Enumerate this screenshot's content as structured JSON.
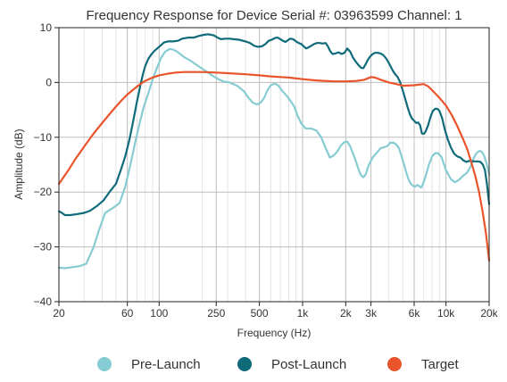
{
  "chart_data": {
    "type": "line",
    "title": "Frequency Response for Device Serial #: 03963599 Channel: 1",
    "xlabel": "Frequency (Hz)",
    "ylabel": "Amplitude (dB)",
    "xscale": "log",
    "xlim": [
      20,
      20000
    ],
    "ylim": [
      -40,
      10
    ],
    "grid": true,
    "legend_position": "bottom",
    "x_ticks": [
      {
        "value": 20,
        "label": "20"
      },
      {
        "value": 60,
        "label": "60"
      },
      {
        "value": 100,
        "label": "100"
      },
      {
        "value": 250,
        "label": "250"
      },
      {
        "value": 500,
        "label": "500"
      },
      {
        "value": 1000,
        "label": "1k"
      },
      {
        "value": 2000,
        "label": "2k"
      },
      {
        "value": 3000,
        "label": "3k"
      },
      {
        "value": 6000,
        "label": "6k"
      },
      {
        "value": 10000,
        "label": "10k"
      },
      {
        "value": 20000,
        "label": "20k"
      }
    ],
    "x_minor_ticks": [
      30,
      40,
      50,
      70,
      80,
      90,
      200,
      300,
      400,
      600,
      700,
      800,
      900,
      4000,
      5000,
      7000,
      8000,
      9000
    ],
    "y_ticks": [
      {
        "value": 10,
        "label": "10"
      },
      {
        "value": 0,
        "label": "0"
      },
      {
        "value": -10,
        "label": "−10"
      },
      {
        "value": -20,
        "label": "−20"
      },
      {
        "value": -30,
        "label": "−30"
      },
      {
        "value": -40,
        "label": "−40"
      }
    ],
    "series": [
      {
        "name": "Pre-Launch",
        "color": "#86ccd2",
        "points": [
          [
            20,
            -33.8
          ],
          [
            22,
            -33.9
          ],
          [
            25,
            -33.7
          ],
          [
            28,
            -33.5
          ],
          [
            31,
            -33.1
          ],
          [
            35,
            -30
          ],
          [
            38,
            -27
          ],
          [
            42,
            -23.8
          ],
          [
            47,
            -23
          ],
          [
            53,
            -22
          ],
          [
            58,
            -19
          ],
          [
            63,
            -15
          ],
          [
            68,
            -11
          ],
          [
            73,
            -7.5
          ],
          [
            78,
            -4.5
          ],
          [
            84,
            -2
          ],
          [
            90,
            0.5
          ],
          [
            96,
            2.5
          ],
          [
            103,
            4.5
          ],
          [
            110,
            5.6
          ],
          [
            118,
            6.1
          ],
          [
            125,
            6
          ],
          [
            132,
            5.7
          ],
          [
            140,
            5.2
          ],
          [
            150,
            4.6
          ],
          [
            165,
            4
          ],
          [
            180,
            3.3
          ],
          [
            200,
            2.5
          ],
          [
            225,
            1.6
          ],
          [
            250,
            0.8
          ],
          [
            280,
            0.2
          ],
          [
            310,
            0
          ],
          [
            350,
            -0.6
          ],
          [
            390,
            -1.6
          ],
          [
            420,
            -2.8
          ],
          [
            450,
            -3.7
          ],
          [
            480,
            -4
          ],
          [
            510,
            -3.7
          ],
          [
            540,
            -2.8
          ],
          [
            570,
            -1.4
          ],
          [
            600,
            -0.5
          ],
          [
            640,
            -0.2
          ],
          [
            680,
            -0.6
          ],
          [
            720,
            -1.5
          ],
          [
            780,
            -2.5
          ],
          [
            830,
            -3.5
          ],
          [
            880,
            -4.5
          ],
          [
            920,
            -6
          ],
          [
            980,
            -7.5
          ],
          [
            1050,
            -8.4
          ],
          [
            1150,
            -8.4
          ],
          [
            1250,
            -8.8
          ],
          [
            1350,
            -10
          ],
          [
            1450,
            -12
          ],
          [
            1550,
            -13.7
          ],
          [
            1650,
            -13.3
          ],
          [
            1750,
            -12.6
          ],
          [
            1850,
            -11.5
          ],
          [
            1950,
            -10.9
          ],
          [
            2050,
            -10.8
          ],
          [
            2150,
            -11.7
          ],
          [
            2250,
            -13
          ],
          [
            2350,
            -14.3
          ],
          [
            2450,
            -15.8
          ],
          [
            2550,
            -16.9
          ],
          [
            2650,
            -17.3
          ],
          [
            2750,
            -16.8
          ],
          [
            2900,
            -15
          ],
          [
            3100,
            -13.6
          ],
          [
            3300,
            -12.8
          ],
          [
            3500,
            -12
          ],
          [
            3700,
            -11.8
          ],
          [
            3900,
            -11.6
          ],
          [
            4100,
            -11
          ],
          [
            4300,
            -11
          ],
          [
            4500,
            -11.3
          ],
          [
            4700,
            -12
          ],
          [
            4900,
            -13.5
          ],
          [
            5100,
            -15
          ],
          [
            5300,
            -16.5
          ],
          [
            5500,
            -17.8
          ],
          [
            5700,
            -18.5
          ],
          [
            5900,
            -18.9
          ],
          [
            6100,
            -19
          ],
          [
            6300,
            -18.7
          ],
          [
            6500,
            -18.9
          ],
          [
            6700,
            -19.2
          ],
          [
            6900,
            -18.6
          ],
          [
            7200,
            -17.2
          ],
          [
            7600,
            -15
          ],
          [
            8000,
            -13.5
          ],
          [
            8400,
            -12.9
          ],
          [
            8800,
            -12.9
          ],
          [
            9300,
            -13.6
          ],
          [
            10000,
            -16
          ],
          [
            10800,
            -17.6
          ],
          [
            11500,
            -18.2
          ],
          [
            12300,
            -17.8
          ],
          [
            13200,
            -17
          ],
          [
            14000,
            -16.5
          ],
          [
            14800,
            -15.4
          ],
          [
            15500,
            -14
          ],
          [
            16200,
            -13
          ],
          [
            17000,
            -12.5
          ],
          [
            17700,
            -12.6
          ],
          [
            18400,
            -13.3
          ],
          [
            19200,
            -14.8
          ],
          [
            20000,
            -16.8
          ]
        ]
      },
      {
        "name": "Post-Launch",
        "color": "#0f6b7a",
        "points": [
          [
            20,
            -23.5
          ],
          [
            21,
            -23.8
          ],
          [
            22,
            -24.2
          ],
          [
            24,
            -24.2
          ],
          [
            27,
            -24
          ],
          [
            30,
            -23.8
          ],
          [
            33,
            -23.4
          ],
          [
            37,
            -22.5
          ],
          [
            41,
            -21.5
          ],
          [
            45,
            -20
          ],
          [
            50,
            -18.5
          ],
          [
            54,
            -16
          ],
          [
            58,
            -13.5
          ],
          [
            62,
            -10.5
          ],
          [
            66,
            -7
          ],
          [
            70,
            -3.5
          ],
          [
            74,
            -0.5
          ],
          [
            77,
            1.5
          ],
          [
            80,
            3
          ],
          [
            84,
            4.3
          ],
          [
            88,
            5.1
          ],
          [
            93,
            5.8
          ],
          [
            98,
            6.3
          ],
          [
            103,
            6.8
          ],
          [
            108,
            7.3
          ],
          [
            115,
            7.5
          ],
          [
            125,
            7.5
          ],
          [
            135,
            7.6
          ],
          [
            145,
            8
          ],
          [
            160,
            8.2
          ],
          [
            175,
            8.2
          ],
          [
            190,
            8.5
          ],
          [
            205,
            8.7
          ],
          [
            220,
            8.8
          ],
          [
            240,
            8.6
          ],
          [
            255,
            8.2
          ],
          [
            270,
            7.9
          ],
          [
            290,
            8
          ],
          [
            310,
            8
          ],
          [
            330,
            7.9
          ],
          [
            360,
            7.8
          ],
          [
            400,
            7.5
          ],
          [
            430,
            7.2
          ],
          [
            460,
            6.7
          ],
          [
            490,
            6.5
          ],
          [
            520,
            6.6
          ],
          [
            550,
            7
          ],
          [
            580,
            7.6
          ],
          [
            610,
            7.8
          ],
          [
            640,
            8.1
          ],
          [
            670,
            8.2
          ],
          [
            700,
            7.9
          ],
          [
            730,
            7.6
          ],
          [
            760,
            7.4
          ],
          [
            790,
            7.7
          ],
          [
            820,
            8
          ],
          [
            860,
            7.9
          ],
          [
            900,
            7.5
          ],
          [
            940,
            7.2
          ],
          [
            980,
            7
          ],
          [
            1020,
            6.6
          ],
          [
            1060,
            6.2
          ],
          [
            1100,
            6.4
          ],
          [
            1150,
            6.7
          ],
          [
            1200,
            7
          ],
          [
            1260,
            7.2
          ],
          [
            1320,
            7.2
          ],
          [
            1380,
            7.1
          ],
          [
            1450,
            7.2
          ],
          [
            1500,
            6.6
          ],
          [
            1560,
            5.7
          ],
          [
            1620,
            5.2
          ],
          [
            1700,
            5.3
          ],
          [
            1780,
            5.5
          ],
          [
            1870,
            5.2
          ],
          [
            1960,
            5.4
          ],
          [
            2050,
            6.2
          ],
          [
            2150,
            5.6
          ],
          [
            2250,
            4.5
          ],
          [
            2350,
            3.8
          ],
          [
            2450,
            3.2
          ],
          [
            2550,
            2.7
          ],
          [
            2650,
            2.6
          ],
          [
            2750,
            3.3
          ],
          [
            2850,
            4.1
          ],
          [
            2950,
            4.7
          ],
          [
            3050,
            5.1
          ],
          [
            3200,
            5.4
          ],
          [
            3350,
            5.4
          ],
          [
            3500,
            5.3
          ],
          [
            3650,
            5
          ],
          [
            3800,
            4.5
          ],
          [
            3950,
            3.8
          ],
          [
            4100,
            3
          ],
          [
            4250,
            2.2
          ],
          [
            4400,
            1.6
          ],
          [
            4600,
            1
          ],
          [
            4800,
            0
          ],
          [
            5000,
            -1.5
          ],
          [
            5200,
            -3
          ],
          [
            5400,
            -4.5
          ],
          [
            5600,
            -5.8
          ],
          [
            5800,
            -6.6
          ],
          [
            6000,
            -7
          ],
          [
            6200,
            -7.4
          ],
          [
            6400,
            -7.3
          ],
          [
            6600,
            -7.8
          ],
          [
            6800,
            -9.3
          ],
          [
            7000,
            -9.4
          ],
          [
            7200,
            -9
          ],
          [
            7500,
            -7.8
          ],
          [
            7800,
            -6.3
          ],
          [
            8100,
            -5.2
          ],
          [
            8400,
            -4.8
          ],
          [
            8700,
            -4.8
          ],
          [
            9000,
            -5.2
          ],
          [
            9400,
            -6.5
          ],
          [
            9800,
            -8.5
          ],
          [
            10300,
            -10.4
          ],
          [
            10800,
            -11.8
          ],
          [
            11400,
            -13
          ],
          [
            12000,
            -13.5
          ],
          [
            12600,
            -13.7
          ],
          [
            13200,
            -14.2
          ],
          [
            13900,
            -14.5
          ],
          [
            14600,
            -14.3
          ],
          [
            15300,
            -14.4
          ],
          [
            16000,
            -14.4
          ],
          [
            16700,
            -14.4
          ],
          [
            17400,
            -14.5
          ],
          [
            18100,
            -15
          ],
          [
            18700,
            -16
          ],
          [
            19300,
            -18.5
          ],
          [
            20000,
            -22.2
          ]
        ]
      },
      {
        "name": "Target",
        "color": "#e9542b",
        "points": [
          [
            20,
            -18.5
          ],
          [
            23,
            -16.2
          ],
          [
            26,
            -14
          ],
          [
            30,
            -11.7
          ],
          [
            35,
            -9.3
          ],
          [
            40,
            -7.4
          ],
          [
            45,
            -5.8
          ],
          [
            50,
            -4.4
          ],
          [
            55,
            -3.2
          ],
          [
            60,
            -2.2
          ],
          [
            66,
            -1.3
          ],
          [
            72,
            -0.5
          ],
          [
            80,
            0.3
          ],
          [
            90,
            0.9
          ],
          [
            100,
            1.3
          ],
          [
            115,
            1.6
          ],
          [
            130,
            1.8
          ],
          [
            150,
            1.9
          ],
          [
            180,
            1.9
          ],
          [
            200,
            1.9
          ],
          [
            250,
            1.8
          ],
          [
            300,
            1.7
          ],
          [
            400,
            1.5
          ],
          [
            500,
            1.3
          ],
          [
            600,
            1.1
          ],
          [
            700,
            1
          ],
          [
            800,
            0.9
          ],
          [
            1000,
            0.6
          ],
          [
            1200,
            0.4
          ],
          [
            1400,
            0.3
          ],
          [
            1700,
            0.2
          ],
          [
            2000,
            0.2
          ],
          [
            2400,
            0.3
          ],
          [
            2700,
            0.5
          ],
          [
            3000,
            1
          ],
          [
            3200,
            0.9
          ],
          [
            3500,
            0.5
          ],
          [
            4000,
            0
          ],
          [
            4500,
            -0.3
          ],
          [
            5000,
            -0.6
          ],
          [
            6000,
            -0.5
          ],
          [
            7000,
            -0.3
          ],
          [
            7500,
            -0.7
          ],
          [
            8000,
            -1.4
          ],
          [
            9000,
            -2.8
          ],
          [
            10000,
            -4.2
          ],
          [
            11000,
            -6
          ],
          [
            12000,
            -8
          ],
          [
            13000,
            -10
          ],
          [
            14000,
            -12
          ],
          [
            15000,
            -14.5
          ],
          [
            16000,
            -17
          ],
          [
            17000,
            -20
          ],
          [
            18000,
            -23.5
          ],
          [
            19000,
            -27.5
          ],
          [
            20000,
            -32.5
          ]
        ]
      }
    ]
  }
}
